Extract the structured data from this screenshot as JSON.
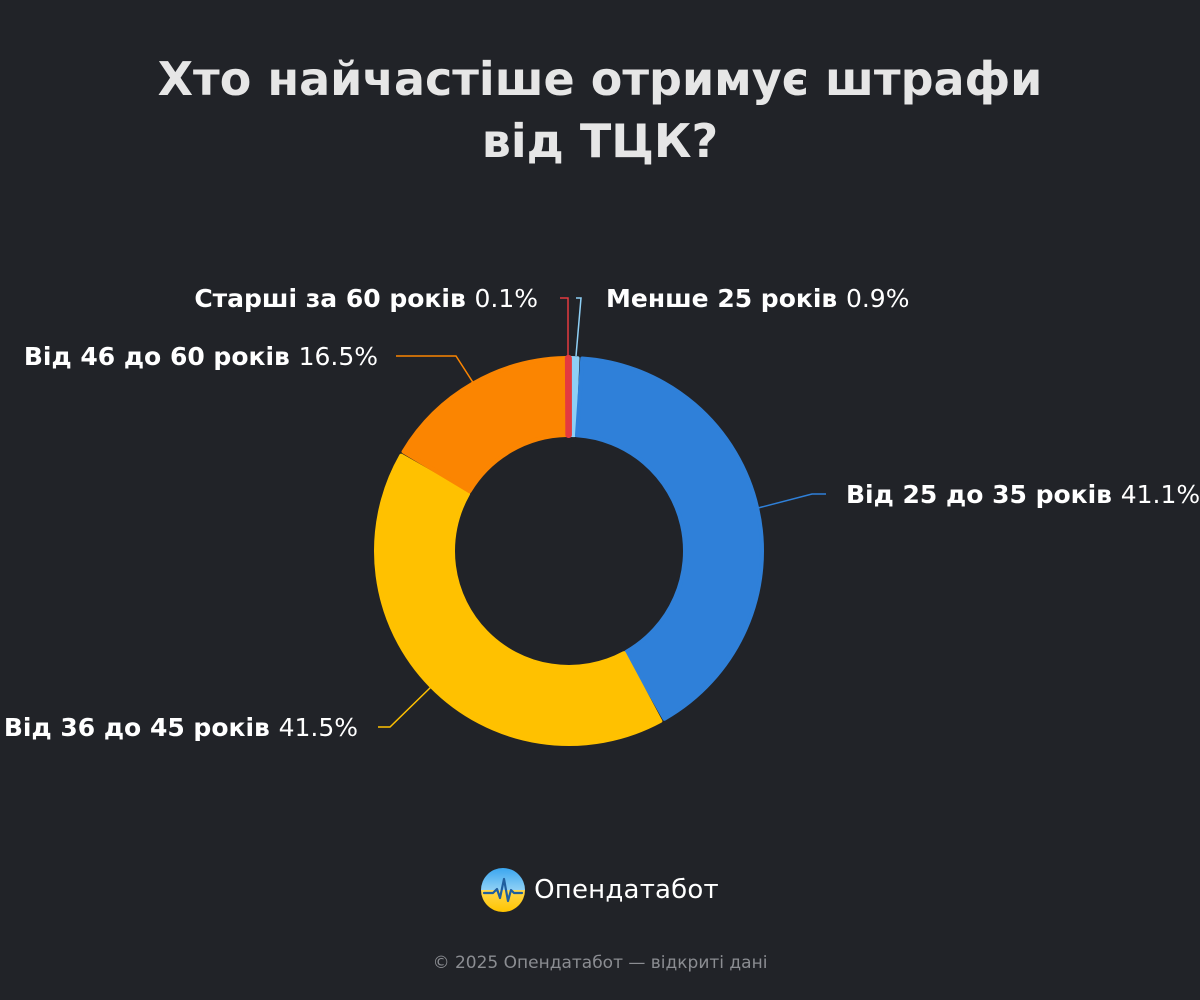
{
  "title": {
    "line1": "Хто найчастіше отримує штрафи",
    "line2": "від ТЦК?"
  },
  "chart_data": {
    "type": "pie",
    "variant": "donut",
    "slices": [
      {
        "label": "Менше 25 років",
        "value": 0.9,
        "display": "0.9%",
        "color": "#8ecff5"
      },
      {
        "label": "Від 25 до 35 років",
        "value": 41.1,
        "display": "41.1%",
        "color": "#2f80d9"
      },
      {
        "label": "Від 36 до 45 років",
        "value": 41.5,
        "display": "41.5%",
        "color": "#ffc100"
      },
      {
        "label": "Від 46 до 60 років",
        "value": 16.5,
        "display": "16.5%",
        "color": "#fb8501"
      },
      {
        "label": "Старші за 60 років",
        "value": 0.1,
        "display": "0.1%",
        "color": "#e43a3f"
      }
    ],
    "background": "#212328"
  },
  "brand": {
    "name": "Опендатабот",
    "logo_icon": "opendatabot-logo-icon"
  },
  "footer": {
    "text": "© 2025 Опендатабот — відкриті дані"
  }
}
